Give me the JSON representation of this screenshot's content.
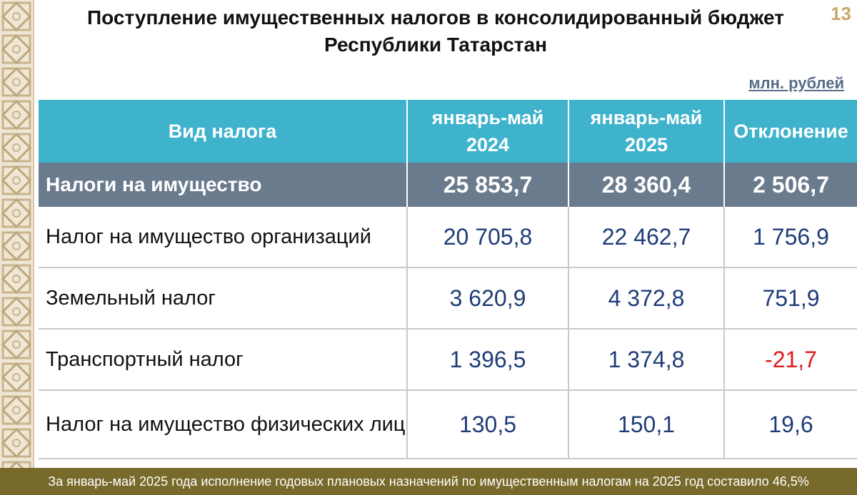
{
  "page_number": "13",
  "title": "Поступление имущественных налогов в консолидированный бюджет Республики Татарстан",
  "units": "млн. рублей",
  "table": {
    "headers": [
      "Вид налога",
      "январь-май 2024",
      "январь-май 2025",
      "Отклонение"
    ],
    "total": {
      "name": "Налоги на имущество",
      "v2024": "25 853,7",
      "v2025": "28 360,4",
      "dev": "2 506,7"
    },
    "rows": [
      {
        "name": "Налог на имущество организаций",
        "v2024": "20 705,8",
        "v2025": "22 462,7",
        "dev": "1 756,9"
      },
      {
        "name": "Земельный налог",
        "v2024": "3 620,9",
        "v2025": "4 372,8",
        "dev": "751,9"
      },
      {
        "name": "Транспортный налог",
        "v2024": "1 396,5",
        "v2025": "1 374,8",
        "dev": "-21,7"
      },
      {
        "name": "Налог на имущество физических лиц",
        "v2024": "130,5",
        "v2025": "150,1",
        "dev": "19,6"
      }
    ]
  },
  "footer": "За январь-май 2025 года исполнение годовых плановых назначений по имущественным налогам на 2025 год составило 46,5%",
  "colors": {
    "header": "#3fb2cc",
    "total_row": "#6b7b8e",
    "values": "#1f3c77",
    "negative": "#e01b1b",
    "footer": "#786a2b"
  }
}
